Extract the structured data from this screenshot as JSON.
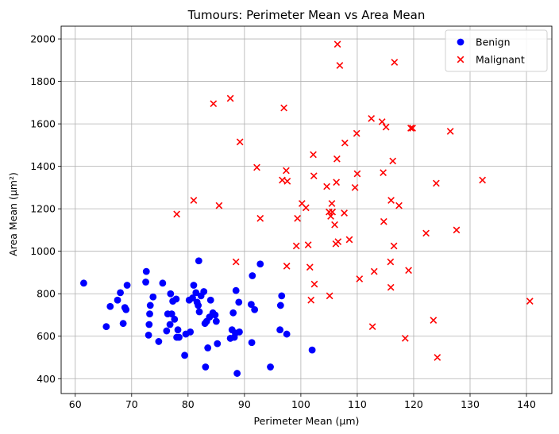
{
  "chart_data": {
    "type": "scatter",
    "title": "Tumours: Perimeter Mean vs Area Mean",
    "xlabel": "Perimeter Mean (µm)",
    "ylabel": "Area Mean (µm²)",
    "xlim": [
      57.5,
      144.5
    ],
    "ylim": [
      330,
      2060
    ],
    "xticks": [
      60,
      70,
      80,
      90,
      100,
      110,
      120,
      130,
      140
    ],
    "yticks": [
      400,
      600,
      800,
      1000,
      1200,
      1400,
      1600,
      1800,
      2000
    ],
    "grid": true,
    "legend_position": "top-right",
    "series": [
      {
        "name": "Benign",
        "marker": "circle",
        "color": "#0000ff",
        "points": [
          [
            61.5,
            850
          ],
          [
            65.5,
            645
          ],
          [
            66.2,
            740
          ],
          [
            67.5,
            770
          ],
          [
            68,
            805
          ],
          [
            68.5,
            660
          ],
          [
            68.8,
            735
          ],
          [
            69,
            725
          ],
          [
            69.2,
            840
          ],
          [
            72.5,
            855
          ],
          [
            72.6,
            905
          ],
          [
            73,
            605
          ],
          [
            73.1,
            655
          ],
          [
            73.2,
            705
          ],
          [
            73.3,
            745
          ],
          [
            73.8,
            785
          ],
          [
            74.8,
            575
          ],
          [
            75.5,
            850
          ],
          [
            76.2,
            625
          ],
          [
            76.4,
            705
          ],
          [
            76.8,
            655
          ],
          [
            76.9,
            800
          ],
          [
            77.1,
            705
          ],
          [
            77.3,
            765
          ],
          [
            77.6,
            680
          ],
          [
            77.9,
            775
          ],
          [
            78,
            595
          ],
          [
            78.2,
            630
          ],
          [
            78.4,
            595
          ],
          [
            79.4,
            510
          ],
          [
            79.6,
            610
          ],
          [
            80.2,
            770
          ],
          [
            80.4,
            620
          ],
          [
            80.8,
            780
          ],
          [
            81,
            840
          ],
          [
            81.4,
            805
          ],
          [
            81.6,
            760
          ],
          [
            81.8,
            745
          ],
          [
            81.9,
            955
          ],
          [
            82,
            715
          ],
          [
            82.3,
            790
          ],
          [
            82.8,
            810
          ],
          [
            83,
            660
          ],
          [
            83.1,
            455
          ],
          [
            83.3,
            670
          ],
          [
            83.5,
            545
          ],
          [
            83.8,
            690
          ],
          [
            84,
            770
          ],
          [
            84.4,
            710
          ],
          [
            84.8,
            700
          ],
          [
            85,
            670
          ],
          [
            85.2,
            565
          ],
          [
            87.5,
            590
          ],
          [
            87.8,
            630
          ],
          [
            88,
            710
          ],
          [
            88.2,
            595
          ],
          [
            88.4,
            615
          ],
          [
            88.5,
            815
          ],
          [
            88.7,
            425
          ],
          [
            89,
            760
          ],
          [
            89.1,
            620
          ],
          [
            91.2,
            750
          ],
          [
            91.3,
            570
          ],
          [
            91.4,
            885
          ],
          [
            91.8,
            725
          ],
          [
            92.8,
            940
          ],
          [
            94.6,
            455
          ],
          [
            96.3,
            630
          ],
          [
            96.4,
            745
          ],
          [
            96.6,
            790
          ],
          [
            97.5,
            610
          ],
          [
            102,
            535
          ]
        ]
      },
      {
        "name": "Malignant",
        "marker": "x",
        "color": "#ff0000",
        "points": [
          [
            78,
            1175
          ],
          [
            81,
            1240
          ],
          [
            84.5,
            1695
          ],
          [
            85.5,
            1215
          ],
          [
            87.5,
            1720
          ],
          [
            88.5,
            950
          ],
          [
            89.2,
            1515
          ],
          [
            92.2,
            1395
          ],
          [
            92.8,
            1155
          ],
          [
            96.7,
            1335
          ],
          [
            97,
            1675
          ],
          [
            97.4,
            1380
          ],
          [
            97.5,
            930
          ],
          [
            97.6,
            1330
          ],
          [
            99.2,
            1025
          ],
          [
            99.4,
            1155
          ],
          [
            100.2,
            1225
          ],
          [
            100.9,
            1205
          ],
          [
            101.3,
            1030
          ],
          [
            101.6,
            925
          ],
          [
            101.8,
            770
          ],
          [
            102.2,
            1455
          ],
          [
            102.3,
            1355
          ],
          [
            102.4,
            845
          ],
          [
            104.6,
            1305
          ],
          [
            105,
            1185
          ],
          [
            105.1,
            790
          ],
          [
            105.3,
            1165
          ],
          [
            105.5,
            1225
          ],
          [
            105.6,
            1185
          ],
          [
            106,
            1125
          ],
          [
            106.2,
            1035
          ],
          [
            106.3,
            1325
          ],
          [
            106.4,
            1435
          ],
          [
            106.5,
            1975
          ],
          [
            106.6,
            1045
          ],
          [
            106.9,
            1875
          ],
          [
            107.7,
            1180
          ],
          [
            107.8,
            1510
          ],
          [
            108.6,
            1055
          ],
          [
            109.6,
            1300
          ],
          [
            109.9,
            1555
          ],
          [
            110,
            1365
          ],
          [
            110.4,
            870
          ],
          [
            112.5,
            1625
          ],
          [
            112.7,
            645
          ],
          [
            113,
            905
          ],
          [
            114.4,
            1610
          ],
          [
            114.6,
            1370
          ],
          [
            114.7,
            1140
          ],
          [
            115.1,
            1585
          ],
          [
            115.9,
            950
          ],
          [
            115.95,
            830
          ],
          [
            116,
            1240
          ],
          [
            116.3,
            1425
          ],
          [
            116.5,
            1025
          ],
          [
            116.6,
            1890
          ],
          [
            117.4,
            1215
          ],
          [
            118.5,
            590
          ],
          [
            119.1,
            910
          ],
          [
            119.5,
            1580
          ],
          [
            119.8,
            1580
          ],
          [
            122.2,
            1085
          ],
          [
            123.5,
            675
          ],
          [
            124,
            1320
          ],
          [
            124.2,
            500
          ],
          [
            126.5,
            1565
          ],
          [
            127.6,
            1100
          ],
          [
            132.2,
            1335
          ],
          [
            140.6,
            765
          ]
        ]
      }
    ]
  }
}
